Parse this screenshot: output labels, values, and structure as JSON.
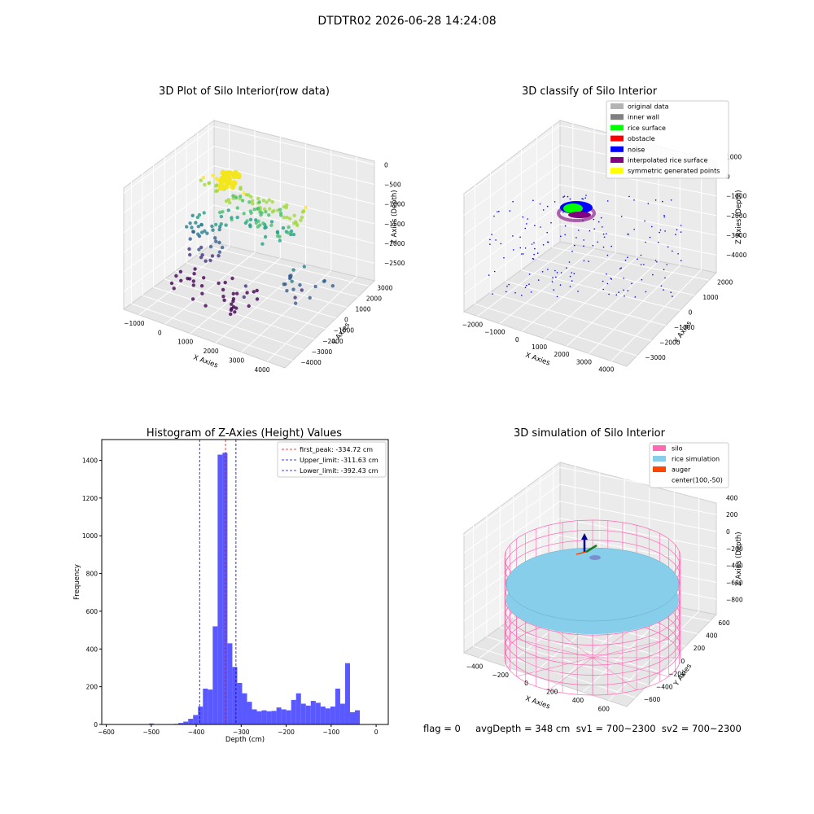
{
  "page": {
    "title": "DTDTR02 2026-06-28 14:24:08",
    "status_line": "flag = 0     avgDepth = 348 cm  sv1 = 700~2300  sv2 = 700~2300"
  },
  "colors": {
    "hist_bar": "#5050ff",
    "first_peak": "#ff0000",
    "limit_line": "#0000cc",
    "silo": "#ff69b4",
    "rice_simulation": "#87ceeb",
    "auger": "#ff4500",
    "original_data": "#b3b3b3",
    "inner_wall": "#808080",
    "rice_surface": "#00ff00",
    "obstacle": "#ff0000",
    "noise": "#0000ff",
    "interpolated_rice_surface": "#800080",
    "symmetric_generated_points": "#ffff00"
  },
  "chart_data": [
    {
      "type": "scatter",
      "title": "3D Plot of Silo Interior(row data)",
      "xlabel": "X Axies",
      "ylabel": "Y Axies",
      "zlabel": "Z Axies (Depth)",
      "x_ticks": [
        "−1000",
        "0",
        "1000",
        "2000",
        "3000",
        "4000"
      ],
      "y_ticks": [
        "3000",
        "2000",
        "1000",
        "0",
        "−1000",
        "−2000",
        "−3000",
        "−4000"
      ],
      "z_ticks": [
        "0",
        "−500",
        "−1000",
        "−1500",
        "−2000",
        "−2500"
      ],
      "xlim": [
        -1500,
        4200
      ],
      "ylim": [
        -4200,
        3200
      ],
      "zlim": [
        -2700,
        100
      ],
      "colormap": "viridis",
      "point_groups": [
        {
          "x": [
            -500,
            3200
          ],
          "y": [
            -300,
            300
          ],
          "z": [
            -200,
            -600
          ],
          "count": 60
        },
        {
          "x": [
            0,
            2600
          ],
          "y": [
            -600,
            1200
          ],
          "z": [
            -700,
            -1200
          ],
          "count": 60
        },
        {
          "x": [
            2500,
            4000
          ],
          "y": [
            -1500,
            500
          ],
          "z": [
            -1500,
            -2100
          ],
          "count": 20
        },
        {
          "x": [
            -1100,
            100
          ],
          "y": [
            -200,
            400
          ],
          "z": [
            -1200,
            -2200
          ],
          "count": 40
        },
        {
          "x": [
            -1200,
            1500
          ],
          "y": [
            -2000,
            300
          ],
          "z": [
            -2300,
            -2700
          ],
          "count": 40
        }
      ]
    },
    {
      "type": "scatter",
      "title": "3D classify of Silo Interior",
      "xlabel": "X Axies",
      "ylabel": "Y Axies",
      "zlabel": "Z Axies (Depth)",
      "x_ticks": [
        "−2000",
        "−1000",
        "0",
        "1000",
        "2000",
        "3000",
        "4000"
      ],
      "y_ticks": [
        "2000",
        "1000",
        "0",
        "−1000",
        "−2000",
        "−3000"
      ],
      "z_ticks": [
        "1000",
        "0",
        "−1000",
        "−2000",
        "−3000",
        "−4000"
      ],
      "legend": [
        "original data",
        "inner wall",
        "rice surface",
        "obstacle",
        "noise",
        "interpolated rice surface",
        "symmetric generated points"
      ]
    },
    {
      "type": "bar",
      "title": "Histogram of Z-Axies (Height) Values",
      "xlabel": "Depth (cm)",
      "ylabel": "Frequency",
      "xlim": [
        -610,
        27
      ],
      "ylim": [
        0,
        1510
      ],
      "x_ticks": [
        -600,
        -500,
        -400,
        -300,
        -200,
        -100,
        0
      ],
      "y_ticks": [
        0,
        200,
        400,
        600,
        800,
        1000,
        1200,
        1400
      ],
      "bin_start": -505,
      "bin_width": 10.9,
      "values": [
        5,
        0,
        0,
        0,
        2,
        3,
        8,
        15,
        30,
        50,
        95,
        190,
        185,
        520,
        1430,
        1440,
        430,
        305,
        220,
        165,
        120,
        80,
        70,
        75,
        70,
        72,
        90,
        80,
        75,
        130,
        165,
        110,
        100,
        125,
        115,
        95,
        85,
        95,
        190,
        110,
        325,
        65,
        75
      ],
      "reference_lines": [
        {
          "label": "first_peak: -334.72 cm",
          "x": -334.72,
          "color": "#ff0000"
        },
        {
          "label": "Upper_limit: -311.63 cm",
          "x": -311.63,
          "color": "#0000cc"
        },
        {
          "label": "Lower_limit: -392.43 cm",
          "x": -392.43,
          "color": "#0000cc"
        }
      ]
    },
    {
      "type": "surface",
      "title": "3D simulation of Silo Interior",
      "xlabel": "X Axies",
      "ylabel": "Y Axies",
      "zlabel": "Z Axies (Depth)",
      "x_ticks": [
        "−400",
        "−200",
        "0",
        "200",
        "400",
        "600"
      ],
      "y_ticks": [
        "600",
        "400",
        "200",
        "0",
        "−200",
        "−400",
        "−600"
      ],
      "z_ticks": [
        "400",
        "200",
        "0",
        "−200",
        "−400",
        "−600",
        "−800"
      ],
      "legend": [
        "silo",
        "rice simulation",
        "auger",
        "center(100,-50)"
      ]
    }
  ]
}
